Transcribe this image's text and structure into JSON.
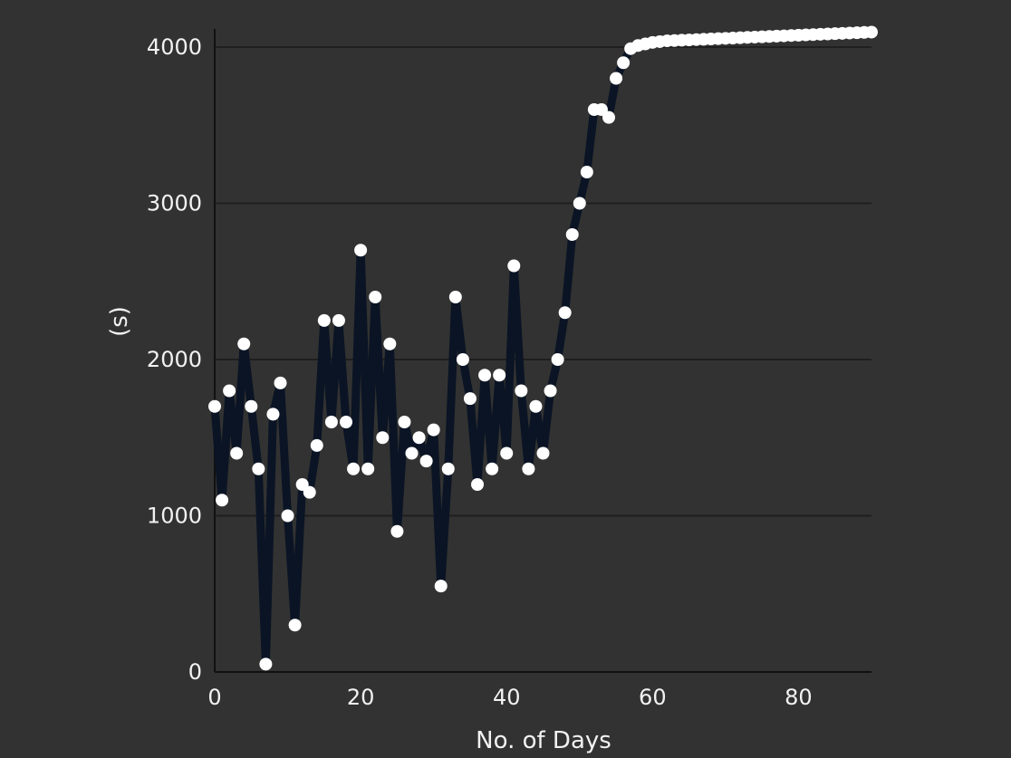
{
  "chart_data": {
    "type": "line",
    "title": "",
    "xlabel": "No. of Days",
    "ylabel": "(s)",
    "xlim": [
      0,
      90
    ],
    "ylim": [
      0,
      4000
    ],
    "x_ticks": [
      0,
      20,
      40,
      60,
      80
    ],
    "y_ticks": [
      0,
      1000,
      2000,
      3000,
      4000
    ],
    "grid": true,
    "colors": {
      "background": "#323232",
      "line": "#0a1424",
      "marker": "#ffffff",
      "grid": "#1f1f1f",
      "axis": "#111111",
      "text": "#f2f2f2"
    },
    "series": [
      {
        "x": [
          0,
          1,
          2,
          3,
          4,
          5,
          6,
          7,
          8,
          9,
          10,
          11,
          12,
          13,
          14,
          15,
          16,
          17,
          18,
          19,
          20,
          21,
          22,
          23,
          24,
          25,
          26,
          27,
          28,
          29,
          30,
          31,
          32,
          33,
          34,
          35,
          36,
          37,
          38,
          39,
          40,
          41,
          42,
          43,
          44,
          45,
          46,
          47,
          48,
          49,
          50,
          51,
          52,
          53,
          54,
          55,
          56,
          57,
          58,
          59,
          60,
          61,
          62,
          63,
          64,
          65,
          66,
          67,
          68,
          69,
          70,
          71,
          72,
          73,
          74,
          75,
          76,
          77,
          78,
          79,
          80,
          81,
          82,
          83,
          84,
          85,
          86,
          87,
          88,
          89,
          90
        ],
        "values": [
          1700,
          1100,
          1800,
          1400,
          2100,
          1700,
          1300,
          50,
          1650,
          1850,
          1000,
          300,
          1200,
          1150,
          1450,
          2250,
          1600,
          2250,
          1600,
          1300,
          2700,
          1300,
          2400,
          1500,
          2100,
          900,
          1600,
          1400,
          1500,
          1350,
          1550,
          550,
          1300,
          2400,
          2000,
          1750,
          1200,
          1900,
          1300,
          1900,
          1400,
          2600,
          1800,
          1300,
          1700,
          1400,
          1800,
          2000,
          2300,
          2800,
          3000,
          3200,
          3600,
          3600,
          3550,
          3800,
          3900,
          3990,
          4010,
          4020,
          4030,
          4035,
          4040,
          4042,
          4044,
          4046,
          4048,
          4050,
          4052,
          4054,
          4056,
          4058,
          4060,
          4062,
          4064,
          4066,
          4068,
          4070,
          4072,
          4074,
          4076,
          4078,
          4080,
          4082,
          4084,
          4086,
          4088,
          4090,
          4092,
          4094,
          4096
        ]
      }
    ]
  }
}
